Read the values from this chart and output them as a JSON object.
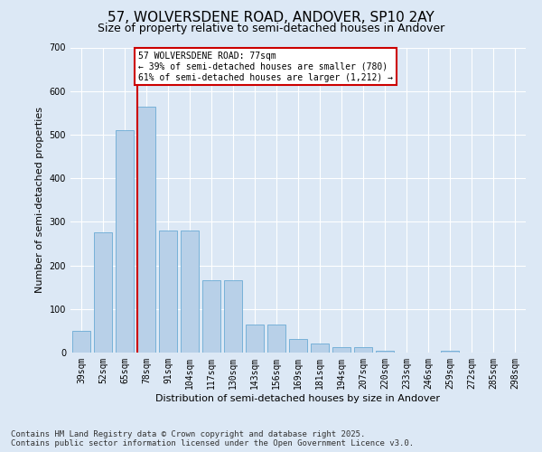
{
  "title": "57, WOLVERSDENE ROAD, ANDOVER, SP10 2AY",
  "subtitle": "Size of property relative to semi-detached houses in Andover",
  "xlabel": "Distribution of semi-detached houses by size in Andover",
  "ylabel": "Number of semi-detached properties",
  "categories": [
    "39sqm",
    "52sqm",
    "65sqm",
    "78sqm",
    "91sqm",
    "104sqm",
    "117sqm",
    "130sqm",
    "143sqm",
    "156sqm",
    "169sqm",
    "181sqm",
    "194sqm",
    "207sqm",
    "220sqm",
    "233sqm",
    "246sqm",
    "259sqm",
    "272sqm",
    "285sqm",
    "298sqm"
  ],
  "values": [
    50,
    275,
    510,
    565,
    280,
    280,
    165,
    165,
    65,
    65,
    32,
    20,
    13,
    13,
    5,
    0,
    0,
    5,
    0,
    0,
    0
  ],
  "bar_color": "#b8d0e8",
  "bar_edge_color": "#6aaad4",
  "property_bin_index": 3,
  "vline_color": "#cc0000",
  "annotation_text": "57 WOLVERSDENE ROAD: 77sqm\n← 39% of semi-detached houses are smaller (780)\n61% of semi-detached houses are larger (1,212) →",
  "annotation_box_color": "#ffffff",
  "annotation_box_edge_color": "#cc0000",
  "footer_text": "Contains HM Land Registry data © Crown copyright and database right 2025.\nContains public sector information licensed under the Open Government Licence v3.0.",
  "ylim": [
    0,
    700
  ],
  "yticks": [
    0,
    100,
    200,
    300,
    400,
    500,
    600,
    700
  ],
  "background_color": "#dce8f5",
  "plot_background_color": "#dce8f5",
  "grid_color": "#ffffff",
  "title_fontsize": 11,
  "subtitle_fontsize": 9,
  "axis_label_fontsize": 8,
  "tick_fontsize": 7,
  "footer_fontsize": 6.5
}
